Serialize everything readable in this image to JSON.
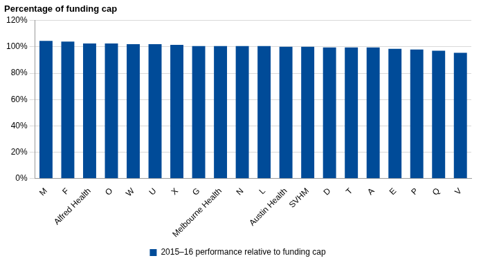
{
  "chart_data": {
    "type": "bar",
    "y_label": "Percentage of funding cap",
    "categories": [
      "M",
      "F",
      "Alfred Health",
      "O",
      "W",
      "U",
      "X",
      "G",
      "Melbourne Health",
      "N",
      "L",
      "Austin Health",
      "SVHM",
      "D",
      "T",
      "A",
      "E",
      "P",
      "Q",
      "V"
    ],
    "series": [
      {
        "name": "2015–16 performance relative to funding cap",
        "color": "#004b98",
        "values": [
          104.5,
          104,
          102.5,
          102.5,
          102,
          102,
          101.5,
          100.5,
          100.5,
          100.5,
          100.5,
          100,
          100,
          99.5,
          99.5,
          99.5,
          98.5,
          98,
          97,
          95.5
        ]
      }
    ],
    "ylim": [
      0,
      120
    ],
    "yticks": [
      {
        "value": 0,
        "label": "0%"
      },
      {
        "value": 20,
        "label": "20%"
      },
      {
        "value": 40,
        "label": "40%"
      },
      {
        "value": 60,
        "label": "60%"
      },
      {
        "value": 80,
        "label": "80%"
      },
      {
        "value": 100,
        "label": "100%"
      },
      {
        "value": 120,
        "label": "120%"
      }
    ],
    "grid": true,
    "legend": "bottom"
  }
}
